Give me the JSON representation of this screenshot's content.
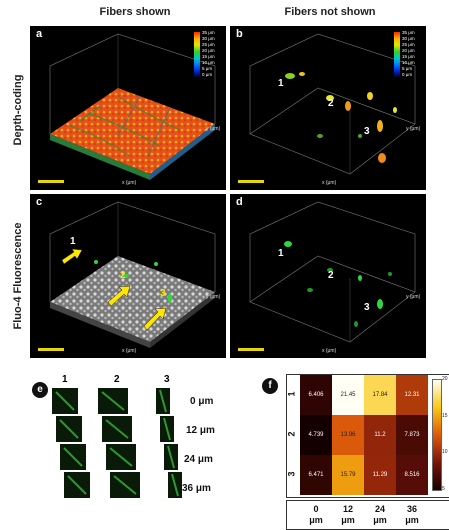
{
  "headers": {
    "col1": "Fibers shown",
    "col2": "Fibers not shown",
    "row1": "Depth-coding",
    "row2": "Fluo-4 Fluorescence"
  },
  "panels": {
    "a": "a",
    "b": "b",
    "c": "c",
    "d": "d",
    "e": "e",
    "f": "f"
  },
  "depth_legend": [
    "35 μm",
    "30 μm",
    "25 μm",
    "20 μm",
    "15 μm",
    "10 μm",
    "5 μm",
    "0 μm"
  ],
  "axis": {
    "x_label": "x (μm)",
    "y_label": "y (μm)"
  },
  "markers": {
    "one": "1",
    "two": "2",
    "three": "3"
  },
  "strip": {
    "cols": [
      "1",
      "2",
      "3"
    ],
    "rows": [
      "0 μm",
      "12 μm",
      "24 μm",
      "36 μm"
    ]
  },
  "heatmap": {
    "row_labels": [
      "1",
      "2",
      "3"
    ],
    "col_labels": [
      [
        "0",
        "μm"
      ],
      [
        "12",
        "μm"
      ],
      [
        "24",
        "μm"
      ],
      [
        "36",
        "μm"
      ]
    ],
    "values": [
      [
        "6.406",
        "21.45",
        "17.84",
        "12.31"
      ],
      [
        "4.739",
        "13.96",
        "11.2",
        "7.873"
      ],
      [
        "6.471",
        "15.79",
        "11.29",
        "8.516"
      ]
    ],
    "colorbar_ticks": [
      "20",
      "15",
      "10",
      "5"
    ]
  },
  "chart_data": {
    "type": "heatmap",
    "rows": [
      "1",
      "2",
      "3"
    ],
    "columns": [
      "0 μm",
      "12 μm",
      "24 μm",
      "36 μm"
    ],
    "values": [
      [
        6.406,
        21.45,
        17.84,
        12.31
      ],
      [
        4.739,
        13.96,
        11.2,
        7.873
      ],
      [
        6.471,
        15.79,
        11.29,
        8.516
      ]
    ],
    "colorbar_range": [
      5,
      20
    ]
  },
  "colors": {
    "scalebar": "#e8d800",
    "arrow": "#ffe600",
    "background": "#000000"
  }
}
